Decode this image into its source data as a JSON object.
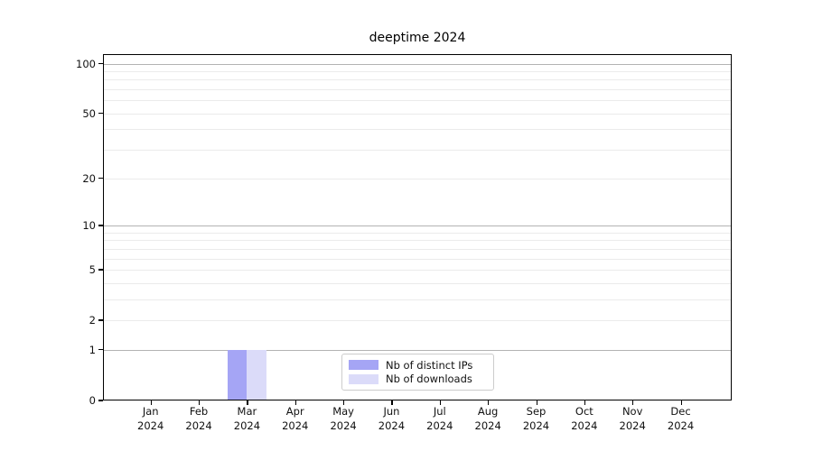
{
  "title": "deeptime 2024",
  "chart_data": {
    "type": "bar",
    "title": "deeptime 2024",
    "categories": [
      "Jan",
      "Feb",
      "Mar",
      "Apr",
      "May",
      "Jun",
      "Jul",
      "Aug",
      "Sep",
      "Oct",
      "Nov",
      "Dec"
    ],
    "x_year": "2024",
    "series": [
      {
        "name": "Nb of distinct IPs",
        "color": "#a5a5f5",
        "values": [
          0,
          0,
          1,
          0,
          0,
          0,
          0,
          0,
          0,
          0,
          0,
          0
        ]
      },
      {
        "name": "Nb of downloads",
        "color": "#dbdbf9",
        "values": [
          0,
          0,
          1,
          0,
          0,
          0,
          0,
          0,
          0,
          0,
          0,
          0
        ]
      }
    ],
    "y_tick_labels": [
      0,
      1,
      2,
      5,
      10,
      20,
      50,
      100
    ],
    "y_major_gridlines": [
      1,
      10,
      100
    ],
    "y_minor_gridlines": [
      2,
      3,
      4,
      5,
      6,
      7,
      8,
      9,
      20,
      30,
      40,
      50,
      60,
      70,
      80,
      90
    ],
    "scale": "log1p",
    "ylim": [
      0,
      114
    ],
    "xlabel": "",
    "ylabel": "",
    "grid": true,
    "legend_position": "lower center"
  },
  "legend": {
    "items": [
      {
        "label": "Nb of distinct IPs",
        "color": "#a5a5f5"
      },
      {
        "label": "Nb of downloads",
        "color": "#dbdbf9"
      }
    ]
  }
}
